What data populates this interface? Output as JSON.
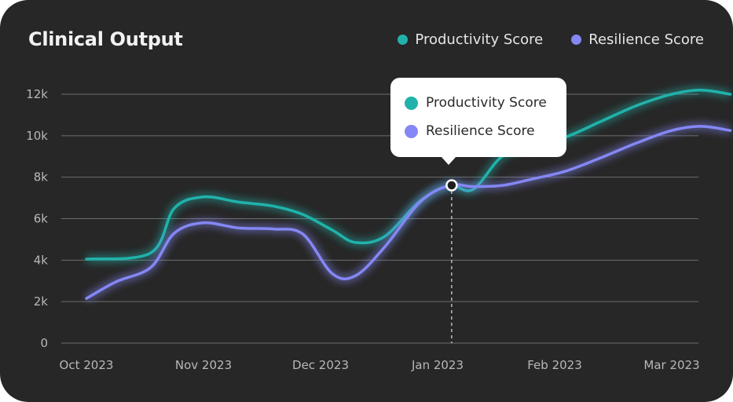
{
  "title": "Clinical Output",
  "colors": {
    "productivity": "#20b2aa",
    "resilience": "#8587f5"
  },
  "legend": {
    "productivity": "Productivity Score",
    "resilience": "Resilience Score"
  },
  "tooltip": {
    "productivity": "Productivity Score",
    "resilience": "Resilience Score"
  },
  "chart_data": {
    "type": "line",
    "title": "Clinical Output",
    "xlabel": "",
    "ylabel": "",
    "ylim": [
      0,
      12000
    ],
    "yticks": [
      0,
      2000,
      4000,
      6000,
      8000,
      10000,
      12000
    ],
    "ytick_labels": [
      "0",
      "2k",
      "4k",
      "6k",
      "8k",
      "10k",
      "12k"
    ],
    "xticks": [
      0,
      1,
      2,
      3,
      4,
      5
    ],
    "categories": [
      "Oct 2023",
      "Nov 2023",
      "Dec 2023",
      "Jan 2023",
      "Feb 2023",
      "Mar 2023"
    ],
    "grid": true,
    "legend_position": "top-right",
    "hovered_x": 3.12,
    "series": [
      {
        "name": "Productivity Score",
        "color": "#20b2aa",
        "x": [
          0,
          0.55,
          0.75,
          1.0,
          1.3,
          1.6,
          1.85,
          2.1,
          2.3,
          2.55,
          2.85,
          3.1,
          3.3,
          3.55,
          3.8,
          4.1,
          4.4,
          4.7,
          5.0,
          5.25,
          5.5
        ],
        "y": [
          4050,
          4350,
          6500,
          7050,
          6800,
          6600,
          6200,
          5450,
          4850,
          5150,
          6850,
          7600,
          7400,
          9000,
          9500,
          9950,
          10700,
          11450,
          12000,
          12200,
          12000
        ]
      },
      {
        "name": "Resilience Score",
        "color": "#8587f5",
        "x": [
          0,
          0.25,
          0.55,
          0.75,
          1.0,
          1.3,
          1.6,
          1.85,
          2.1,
          2.3,
          2.55,
          2.85,
          3.1,
          3.3,
          3.55,
          3.8,
          4.1,
          4.4,
          4.7,
          5.0,
          5.25,
          5.5
        ],
        "y": [
          2150,
          2950,
          3650,
          5300,
          5800,
          5550,
          5500,
          5250,
          3350,
          3250,
          4650,
          6800,
          7600,
          7550,
          7600,
          7900,
          8300,
          8950,
          9650,
          10250,
          10450,
          10250
        ]
      }
    ]
  }
}
